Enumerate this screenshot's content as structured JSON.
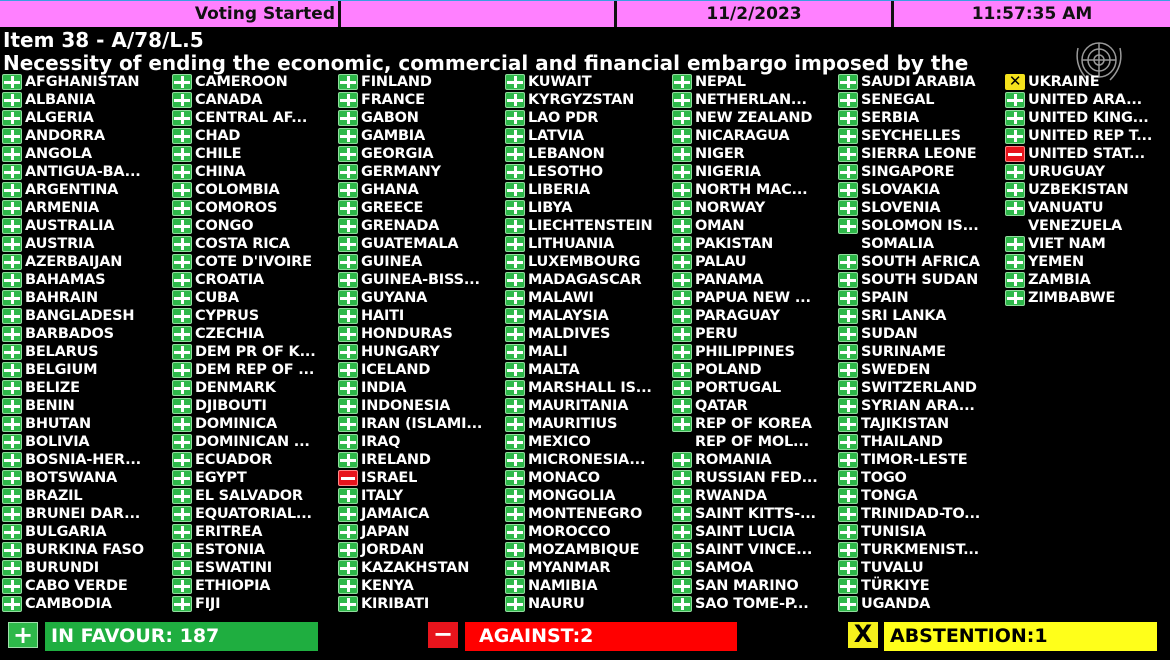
{
  "header": {
    "status": "Voting Started",
    "date": "11/2/2023",
    "time": "11:57:35 AM"
  },
  "item": "Item 38 - A/78/L.5",
  "title": "Necessity of ending the economic, commercial and financial embargo imposed by the",
  "colors": {
    "yes": "#2eb84a",
    "no": "#e8141c",
    "abstain": "#f5e21c",
    "header": "#ff80ff"
  },
  "icons": {
    "Y": "plus-icon",
    "N": "minus-icon",
    "A": "x-icon"
  },
  "columns": [
    [
      [
        "AFGHANISTAN",
        "Y"
      ],
      [
        "ALBANIA",
        "Y"
      ],
      [
        "ALGERIA",
        "Y"
      ],
      [
        "ANDORRA",
        "Y"
      ],
      [
        "ANGOLA",
        "Y"
      ],
      [
        "ANTIGUA-BA...",
        "Y"
      ],
      [
        "ARGENTINA",
        "Y"
      ],
      [
        "ARMENIA",
        "Y"
      ],
      [
        "AUSTRALIA",
        "Y"
      ],
      [
        "AUSTRIA",
        "Y"
      ],
      [
        "AZERBAIJAN",
        "Y"
      ],
      [
        "BAHAMAS",
        "Y"
      ],
      [
        "BAHRAIN",
        "Y"
      ],
      [
        "BANGLADESH",
        "Y"
      ],
      [
        "BARBADOS",
        "Y"
      ],
      [
        "BELARUS",
        "Y"
      ],
      [
        "BELGIUM",
        "Y"
      ],
      [
        "BELIZE",
        "Y"
      ],
      [
        "BENIN",
        "Y"
      ],
      [
        "BHUTAN",
        "Y"
      ],
      [
        "BOLIVIA",
        "Y"
      ],
      [
        "BOSNIA-HER...",
        "Y"
      ],
      [
        "BOTSWANA",
        "Y"
      ],
      [
        "BRAZIL",
        "Y"
      ],
      [
        "BRUNEI DAR...",
        "Y"
      ],
      [
        "BULGARIA",
        "Y"
      ],
      [
        "BURKINA FASO",
        "Y"
      ],
      [
        "BURUNDI",
        "Y"
      ],
      [
        "CABO VERDE",
        "Y"
      ],
      [
        "CAMBODIA",
        "Y"
      ]
    ],
    [
      [
        "CAMEROON",
        "Y"
      ],
      [
        "CANADA",
        "Y"
      ],
      [
        "CENTRAL AF...",
        "Y"
      ],
      [
        "CHAD",
        "Y"
      ],
      [
        "CHILE",
        "Y"
      ],
      [
        "CHINA",
        "Y"
      ],
      [
        "COLOMBIA",
        "Y"
      ],
      [
        "COMOROS",
        "Y"
      ],
      [
        "CONGO",
        "Y"
      ],
      [
        "COSTA RICA",
        "Y"
      ],
      [
        "COTE D'IVOIRE",
        "Y"
      ],
      [
        "CROATIA",
        "Y"
      ],
      [
        "CUBA",
        "Y"
      ],
      [
        "CYPRUS",
        "Y"
      ],
      [
        "CZECHIA",
        "Y"
      ],
      [
        "DEM PR OF K...",
        "Y"
      ],
      [
        "DEM REP OF ...",
        "Y"
      ],
      [
        "DENMARK",
        "Y"
      ],
      [
        "DJIBOUTI",
        "Y"
      ],
      [
        "DOMINICA",
        "Y"
      ],
      [
        "DOMINICAN ...",
        "Y"
      ],
      [
        "ECUADOR",
        "Y"
      ],
      [
        "EGYPT",
        "Y"
      ],
      [
        "EL SALVADOR",
        "Y"
      ],
      [
        "EQUATORIAL...",
        "Y"
      ],
      [
        "ERITREA",
        "Y"
      ],
      [
        "ESTONIA",
        "Y"
      ],
      [
        "ESWATINI",
        "Y"
      ],
      [
        "ETHIOPIA",
        "Y"
      ],
      [
        "FIJI",
        "Y"
      ]
    ],
    [
      [
        "FINLAND",
        "Y"
      ],
      [
        "FRANCE",
        "Y"
      ],
      [
        "GABON",
        "Y"
      ],
      [
        "GAMBIA",
        "Y"
      ],
      [
        "GEORGIA",
        "Y"
      ],
      [
        "GERMANY",
        "Y"
      ],
      [
        "GHANA",
        "Y"
      ],
      [
        "GREECE",
        "Y"
      ],
      [
        "GRENADA",
        "Y"
      ],
      [
        "GUATEMALA",
        "Y"
      ],
      [
        "GUINEA",
        "Y"
      ],
      [
        "GUINEA-BISS...",
        "Y"
      ],
      [
        "GUYANA",
        "Y"
      ],
      [
        "HAITI",
        "Y"
      ],
      [
        "HONDURAS",
        "Y"
      ],
      [
        "HUNGARY",
        "Y"
      ],
      [
        "ICELAND",
        "Y"
      ],
      [
        "INDIA",
        "Y"
      ],
      [
        "INDONESIA",
        "Y"
      ],
      [
        "IRAN (ISLAMI...",
        "Y"
      ],
      [
        "IRAQ",
        "Y"
      ],
      [
        "IRELAND",
        "Y"
      ],
      [
        "ISRAEL",
        "N"
      ],
      [
        "ITALY",
        "Y"
      ],
      [
        "JAMAICA",
        "Y"
      ],
      [
        "JAPAN",
        "Y"
      ],
      [
        "JORDAN",
        "Y"
      ],
      [
        "KAZAKHSTAN",
        "Y"
      ],
      [
        "KENYA",
        "Y"
      ],
      [
        "KIRIBATI",
        "Y"
      ]
    ],
    [
      [
        "KUWAIT",
        "Y"
      ],
      [
        "KYRGYZSTAN",
        "Y"
      ],
      [
        "LAO PDR",
        "Y"
      ],
      [
        "LATVIA",
        "Y"
      ],
      [
        "LEBANON",
        "Y"
      ],
      [
        "LESOTHO",
        "Y"
      ],
      [
        "LIBERIA",
        "Y"
      ],
      [
        "LIBYA",
        "Y"
      ],
      [
        "LIECHTENSTEIN",
        "Y"
      ],
      [
        "LITHUANIA",
        "Y"
      ],
      [
        "LUXEMBOURG",
        "Y"
      ],
      [
        "MADAGASCAR",
        "Y"
      ],
      [
        "MALAWI",
        "Y"
      ],
      [
        "MALAYSIA",
        "Y"
      ],
      [
        "MALDIVES",
        "Y"
      ],
      [
        "MALI",
        "Y"
      ],
      [
        "MALTA",
        "Y"
      ],
      [
        "MARSHALL IS...",
        "Y"
      ],
      [
        "MAURITANIA",
        "Y"
      ],
      [
        "MAURITIUS",
        "Y"
      ],
      [
        "MEXICO",
        "Y"
      ],
      [
        "MICRONESIA...",
        "Y"
      ],
      [
        "MONACO",
        "Y"
      ],
      [
        "MONGOLIA",
        "Y"
      ],
      [
        "MONTENEGRO",
        "Y"
      ],
      [
        "MOROCCO",
        "Y"
      ],
      [
        "MOZAMBIQUE",
        "Y"
      ],
      [
        "MYANMAR",
        "Y"
      ],
      [
        "NAMIBIA",
        "Y"
      ],
      [
        "NAURU",
        "Y"
      ]
    ],
    [
      [
        "NEPAL",
        "Y"
      ],
      [
        "NETHERLAN...",
        "Y"
      ],
      [
        "NEW ZEALAND",
        "Y"
      ],
      [
        "NICARAGUA",
        "Y"
      ],
      [
        "NIGER",
        "Y"
      ],
      [
        "NIGERIA",
        "Y"
      ],
      [
        "NORTH MAC...",
        "Y"
      ],
      [
        "NORWAY",
        "Y"
      ],
      [
        "OMAN",
        "Y"
      ],
      [
        "PAKISTAN",
        "Y"
      ],
      [
        "PALAU",
        "Y"
      ],
      [
        "PANAMA",
        "Y"
      ],
      [
        "PAPUA NEW ...",
        "Y"
      ],
      [
        "PARAGUAY",
        "Y"
      ],
      [
        "PERU",
        "Y"
      ],
      [
        "PHILIPPINES",
        "Y"
      ],
      [
        "POLAND",
        "Y"
      ],
      [
        "PORTUGAL",
        "Y"
      ],
      [
        "QATAR",
        "Y"
      ],
      [
        "REP OF KOREA",
        "Y"
      ],
      [
        "REP OF MOL...",
        ""
      ],
      [
        "ROMANIA",
        "Y"
      ],
      [
        "RUSSIAN FED...",
        "Y"
      ],
      [
        "RWANDA",
        "Y"
      ],
      [
        "SAINT KITTS-...",
        "Y"
      ],
      [
        "SAINT LUCIA",
        "Y"
      ],
      [
        "SAINT VINCE...",
        "Y"
      ],
      [
        "SAMOA",
        "Y"
      ],
      [
        "SAN MARINO",
        "Y"
      ],
      [
        "SAO TOME-P...",
        "Y"
      ]
    ],
    [
      [
        "SAUDI ARABIA",
        "Y"
      ],
      [
        "SENEGAL",
        "Y"
      ],
      [
        "SERBIA",
        "Y"
      ],
      [
        "SEYCHELLES",
        "Y"
      ],
      [
        "SIERRA LEONE",
        "Y"
      ],
      [
        "SINGAPORE",
        "Y"
      ],
      [
        "SLOVAKIA",
        "Y"
      ],
      [
        "SLOVENIA",
        "Y"
      ],
      [
        "SOLOMON IS...",
        "Y"
      ],
      [
        "SOMALIA",
        ""
      ],
      [
        "SOUTH AFRICA",
        "Y"
      ],
      [
        "SOUTH SUDAN",
        "Y"
      ],
      [
        "SPAIN",
        "Y"
      ],
      [
        "SRI LANKA",
        "Y"
      ],
      [
        "SUDAN",
        "Y"
      ],
      [
        "SURINAME",
        "Y"
      ],
      [
        "SWEDEN",
        "Y"
      ],
      [
        "SWITZERLAND",
        "Y"
      ],
      [
        "SYRIAN ARA...",
        "Y"
      ],
      [
        "TAJIKISTAN",
        "Y"
      ],
      [
        "THAILAND",
        "Y"
      ],
      [
        "TIMOR-LESTE",
        "Y"
      ],
      [
        "TOGO",
        "Y"
      ],
      [
        "TONGA",
        "Y"
      ],
      [
        "TRINIDAD-TO...",
        "Y"
      ],
      [
        "TUNISIA",
        "Y"
      ],
      [
        "TURKMENIST...",
        "Y"
      ],
      [
        "TUVALU",
        "Y"
      ],
      [
        "TÜRKIYE",
        "Y"
      ],
      [
        "UGANDA",
        "Y"
      ]
    ],
    [
      [
        "UKRAINE",
        "A"
      ],
      [
        "UNITED ARA...",
        "Y"
      ],
      [
        "UNITED KING...",
        "Y"
      ],
      [
        "UNITED REP T...",
        "Y"
      ],
      [
        "UNITED STAT...",
        "N"
      ],
      [
        "URUGUAY",
        "Y"
      ],
      [
        "UZBEKISTAN",
        "Y"
      ],
      [
        "VANUATU",
        "Y"
      ],
      [
        "VENEZUELA",
        ""
      ],
      [
        "VIET NAM",
        "Y"
      ],
      [
        "YEMEN",
        "Y"
      ],
      [
        "ZAMBIA",
        "Y"
      ],
      [
        "ZIMBABWE",
        "Y"
      ]
    ]
  ],
  "totals": {
    "favour": "IN FAVOUR: 187",
    "against": "AGAINST:2",
    "abstention": "ABSTENTION:1"
  }
}
